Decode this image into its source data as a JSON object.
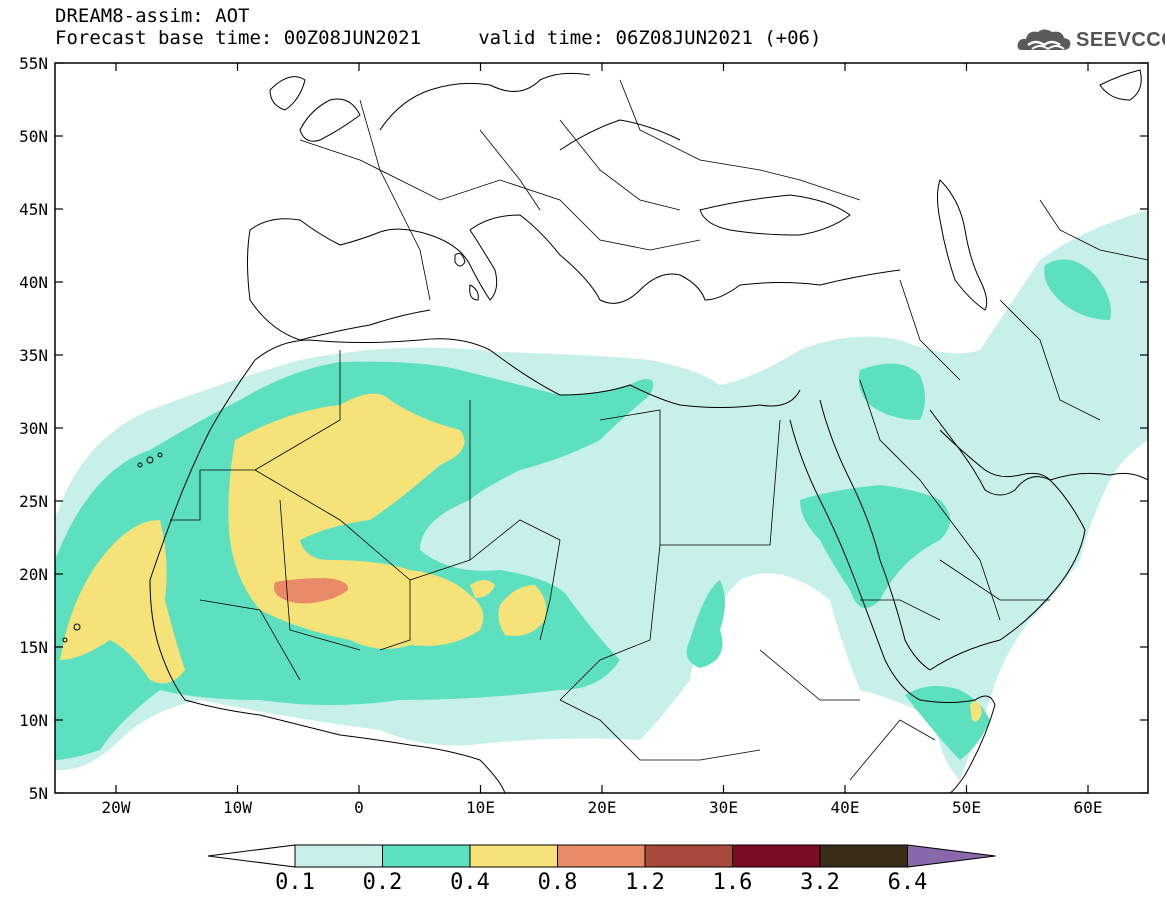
{
  "header": {
    "line1": "DREAM8-assim: AOT",
    "line2": "Forecast base time: 00Z08JUN2021     valid time: 06Z08JUN2021 (+06)"
  },
  "logo": {
    "text": "SEEVCCC",
    "icon": "cloud-icon"
  },
  "map": {
    "lat_labels": [
      "55N",
      "50N",
      "45N",
      "40N",
      "35N",
      "30N",
      "25N",
      "20N",
      "15N",
      "10N",
      "5N"
    ],
    "lon_labels": [
      "20W",
      "10W",
      "0",
      "10E",
      "20E",
      "30E",
      "40E",
      "50E",
      "60E"
    ]
  },
  "colorbar": {
    "labels": [
      "0.1",
      "0.2",
      "0.4",
      "0.8",
      "1.2",
      "1.6",
      "3.2",
      "6.4"
    ],
    "colors": [
      "#ffffff",
      "#c8f0ea",
      "#5de0bf",
      "#f5e278",
      "#e88a68",
      "#a84a3c",
      "#7a0c24",
      "#3a2a18",
      "#8868aa"
    ]
  },
  "field_colors": {
    "light": "#c8f0ea",
    "green": "#5de0bf",
    "yellow": "#f5e278",
    "orange": "#e88a68"
  }
}
